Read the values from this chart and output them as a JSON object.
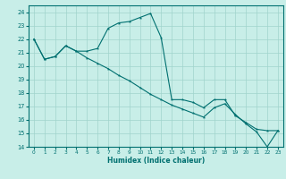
{
  "title": "",
  "xlabel": "Humidex (Indice chaleur)",
  "ylabel": "",
  "background_color": "#c8eee8",
  "line_color": "#007070",
  "grid_color": "#a0d4cc",
  "xlim": [
    -0.5,
    23.5
  ],
  "ylim": [
    14,
    24.5
  ],
  "xticks": [
    0,
    1,
    2,
    3,
    4,
    5,
    6,
    7,
    8,
    9,
    10,
    11,
    12,
    13,
    14,
    15,
    16,
    17,
    18,
    19,
    20,
    21,
    22,
    23
  ],
  "yticks": [
    14,
    15,
    16,
    17,
    18,
    19,
    20,
    21,
    22,
    23,
    24
  ],
  "series1_x": [
    0,
    1,
    2,
    3,
    4,
    5,
    6,
    7,
    8,
    9,
    10,
    11,
    12,
    13,
    14,
    15,
    16,
    17,
    18,
    19,
    20,
    21,
    22,
    23
  ],
  "series1_y": [
    22,
    20.5,
    20.7,
    21.5,
    21.1,
    21.1,
    21.3,
    22.8,
    23.2,
    23.3,
    23.6,
    23.9,
    22.1,
    17.5,
    17.5,
    17.3,
    16.9,
    17.5,
    17.5,
    16.3,
    15.8,
    15.3,
    15.2,
    15.2
  ],
  "series2_x": [
    0,
    1,
    2,
    3,
    4,
    5,
    6,
    7,
    8,
    9,
    10,
    11,
    12,
    13,
    14,
    15,
    16,
    17,
    18,
    19,
    20,
    21,
    22,
    23
  ],
  "series2_y": [
    22.0,
    20.5,
    20.7,
    21.5,
    21.1,
    20.6,
    20.2,
    19.8,
    19.3,
    18.9,
    18.4,
    17.9,
    17.5,
    17.1,
    16.8,
    16.5,
    16.2,
    16.9,
    17.2,
    16.4,
    15.7,
    15.1,
    14.0,
    15.2
  ]
}
